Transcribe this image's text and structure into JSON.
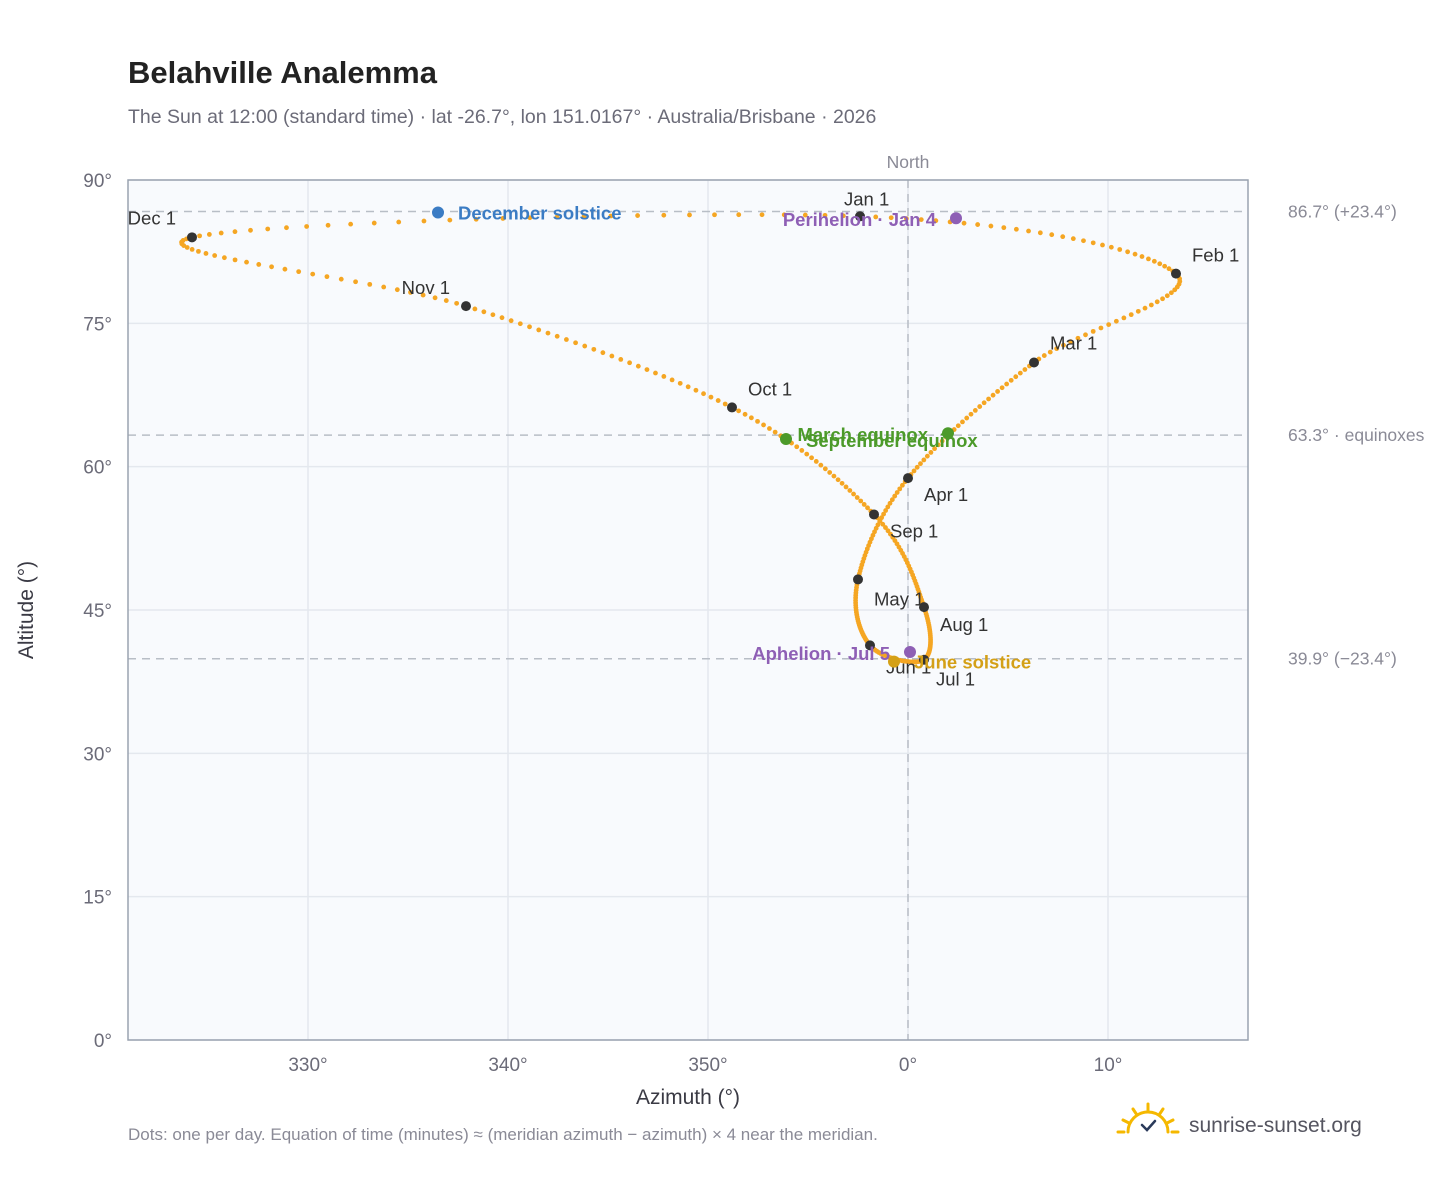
{
  "title": "Belahville Analemma",
  "subtitle": "The Sun at 12:00 (standard time) · lat -26.7°, lon 151.0167° · Australia/Brisbane · 2026",
  "north_label": "North",
  "footnote": "Dots: one per day. Equation of time (minutes) ≈ (meridian azimuth − azimuth) × 4 near the meridian.",
  "brand": "sunrise-sunset.org",
  "colors": {
    "curve": "#f5a623",
    "month_marker": "#333333",
    "december_solstice": "#3b7cc4",
    "june_solstice": "#d4a017",
    "equinox": "#4c9a2a",
    "perihelion_aphelion": "#8e5fb5",
    "grid": "#e4e8ee",
    "plot_bg": "#f8fafd",
    "reference_line": "#b8bec6"
  },
  "chart_data": {
    "type": "scatter",
    "xlabel": "Azimuth (°)",
    "ylabel": "Altitude (°)",
    "xlim": [
      -39,
      17
    ],
    "ylim": [
      0,
      90
    ],
    "x_ticks": [
      {
        "value": -30,
        "label": "330°"
      },
      {
        "value": -20,
        "label": "340°"
      },
      {
        "value": -10,
        "label": "350°"
      },
      {
        "value": 0,
        "label": "0°"
      },
      {
        "value": 10,
        "label": "10°"
      }
    ],
    "y_ticks": [
      {
        "value": 0,
        "label": "0°"
      },
      {
        "value": 15,
        "label": "15°"
      },
      {
        "value": 30,
        "label": "30°"
      },
      {
        "value": 45,
        "label": "45°"
      },
      {
        "value": 60,
        "label": "60°"
      },
      {
        "value": 75,
        "label": "75°"
      },
      {
        "value": 90,
        "label": "90°"
      }
    ],
    "grid": true,
    "reference_lines": [
      {
        "altitude": 86.7,
        "label": "86.7° (+23.4°)"
      },
      {
        "altitude": 63.3,
        "label": "63.3° · equinoxes"
      },
      {
        "altitude": 39.9,
        "label": "39.9° (−23.4°)"
      }
    ],
    "meridian_azimuth": 0,
    "series": [
      {
        "points": [
          {
            "date": "Jan 1",
            "azimuth": -2.4,
            "altitude": 86.2
          },
          {
            "date": "Feb 1",
            "azimuth": 13.4,
            "altitude": 80.2
          },
          {
            "date": "Mar 1",
            "azimuth": 6.3,
            "altitude": 70.9
          },
          {
            "date": "Apr 1",
            "azimuth": 0.0,
            "altitude": 58.8
          },
          {
            "date": "May 1",
            "azimuth": -2.5,
            "altitude": 48.2
          },
          {
            "date": "Jun 1",
            "azimuth": -1.9,
            "altitude": 41.3
          },
          {
            "date": "Jul 1",
            "azimuth": 0.8,
            "altitude": 39.8
          },
          {
            "date": "Aug 1",
            "azimuth": 0.8,
            "altitude": 45.3
          },
          {
            "date": "Sep 1",
            "azimuth": -1.7,
            "altitude": 55.0
          },
          {
            "date": "Oct 1",
            "azimuth": -8.8,
            "altitude": 66.2
          },
          {
            "date": "Nov 1",
            "azimuth": -22.1,
            "altitude": 76.8
          },
          {
            "date": "Dec 1",
            "azimuth": -35.8,
            "altitude": 84.0
          }
        ]
      }
    ],
    "events": [
      {
        "label": "December solstice",
        "azimuth": -23.5,
        "altitude": 86.6,
        "color": "december_solstice"
      },
      {
        "label": "Perihelion · Jan 4",
        "azimuth": 2.4,
        "altitude": 86.0,
        "color": "perihelion_aphelion"
      },
      {
        "label": "March equinox",
        "azimuth": 2.0,
        "altitude": 63.5,
        "color": "equinox"
      },
      {
        "label": "September equinox",
        "azimuth": -6.1,
        "altitude": 62.9,
        "color": "equinox"
      },
      {
        "label": "June solstice",
        "azimuth": -0.7,
        "altitude": 39.6,
        "color": "june_solstice"
      },
      {
        "label": "Aphelion · Jul 5",
        "azimuth": 0.1,
        "altitude": 40.6,
        "color": "perihelion_aphelion"
      }
    ]
  }
}
